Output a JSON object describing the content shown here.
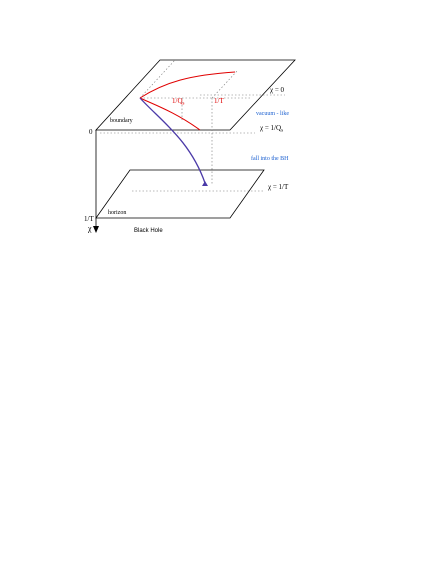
{
  "colors": {
    "ink": "#000000",
    "red": "#e00000",
    "blue": "#1a5fd0",
    "purple": "#4b3aa8",
    "dotted": "#777777"
  },
  "labels": {
    "chi_zero": "χ = 0",
    "vacuum_like": "vacuum - like",
    "chi_inv_qs": "χ = 1/Q",
    "chi_inv_qs_sub": "s",
    "fall_into_bh": "fall into the BH",
    "chi_inv_t": "χ = 1/T",
    "boundary": "boundary",
    "horizon": "horizon",
    "inv_qs": "1/Q",
    "inv_qs_sub": "s",
    "inv_t": "1/T",
    "axis_zero": "0",
    "axis_inv_t": "1/T",
    "axis_chi": "χ",
    "black_hole": "Black Hole"
  }
}
